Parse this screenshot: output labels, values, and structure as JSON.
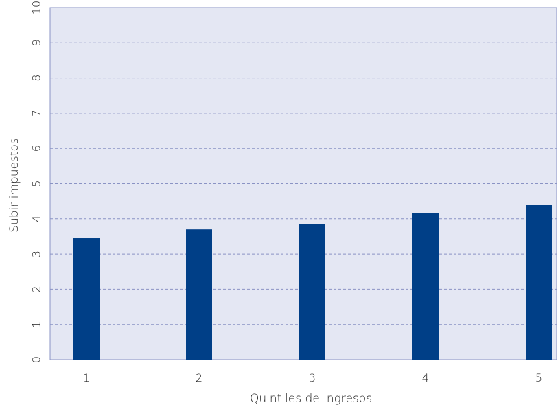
{
  "chart_data": {
    "type": "bar",
    "title": "",
    "xlabel": "Quintiles de ingresos",
    "ylabel": "Subir impuestos",
    "categories": [
      "1",
      "2",
      "3",
      "4",
      "5"
    ],
    "values": [
      3.45,
      3.7,
      3.85,
      4.17,
      4.4
    ],
    "ylim": [
      0,
      10
    ],
    "yticks": [
      "0",
      "1",
      "2",
      "3",
      "4",
      "5",
      "6",
      "7",
      "8",
      "9",
      "10"
    ],
    "grid": true,
    "legend": "none"
  },
  "colors": {
    "bar": "#003f87",
    "plot_background": "#e4e7f3",
    "grid": "#8a93c4",
    "axis": "#8a93c4"
  }
}
